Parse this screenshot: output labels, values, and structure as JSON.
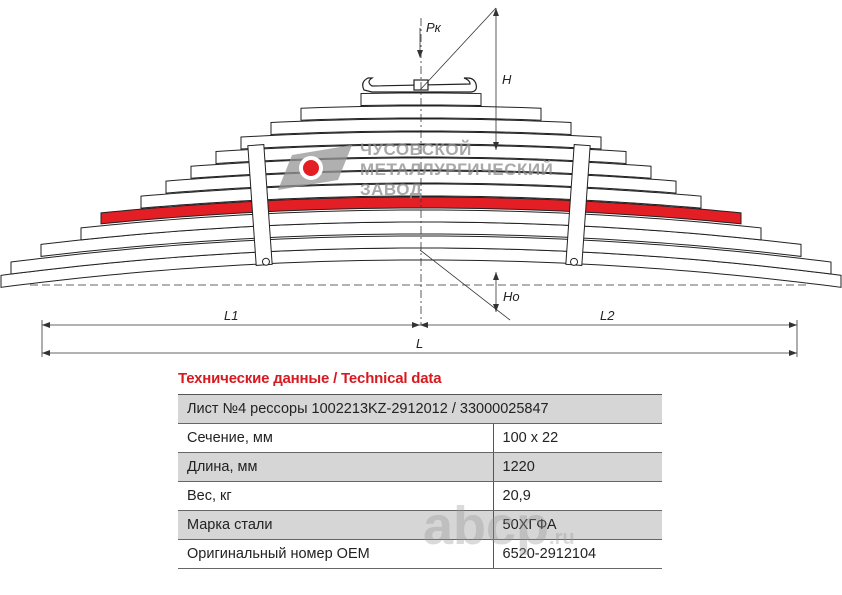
{
  "drawing": {
    "labels": {
      "load": "Рк",
      "height": "H",
      "height0": "Ho",
      "length_left": "L1",
      "length_right": "L2",
      "length": "L"
    },
    "highlight_color": "#e31e24",
    "logo": {
      "lines": [
        "ЧУСОВСКОЙ",
        "МЕТАЛЛУРГИЧЕСКИЙ",
        "ЗАВОД"
      ]
    }
  },
  "table": {
    "title": "Технические данные / Technical data",
    "header": "Лист №4 рессоры 1002213KZ-2912012 / 33000025847",
    "rows": [
      {
        "label": "Сечение, мм",
        "value": "100 x 22"
      },
      {
        "label": "Длина, мм",
        "value": "1220"
      },
      {
        "label": "Вес, кг",
        "value": "20,9"
      },
      {
        "label": "Марка стали",
        "value": "50ХГФА"
      },
      {
        "label": "Оригинальный номер OEM",
        "value": "6520-2912104"
      }
    ]
  },
  "watermark": {
    "main": "abcp",
    "suffix": ".ru"
  },
  "title_color": "#d71920"
}
